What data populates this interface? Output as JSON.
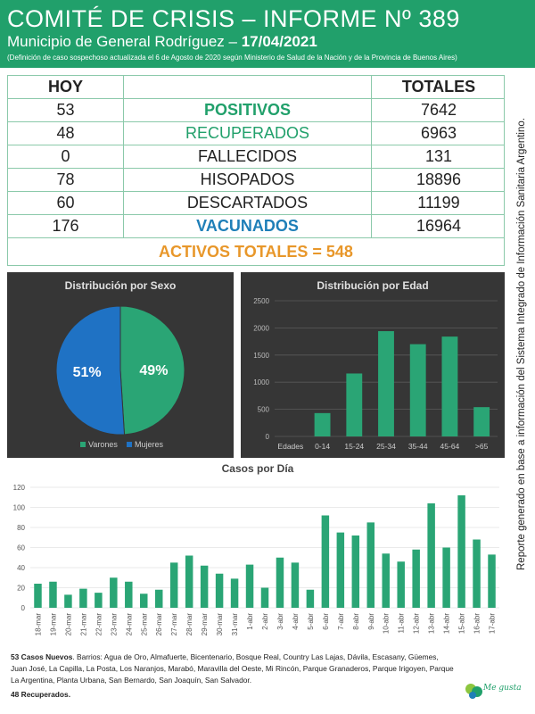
{
  "header": {
    "title": "COMITÉ DE CRISIS – INFORME Nº 389",
    "subtitle_prefix": "Municipio de General Rodríguez – ",
    "date": "17/04/2021",
    "note": "(Definición de caso sospechoso actualizada el 6 de Agosto de 2020 según Ministerio de Salud de la Nación y de la Provincia de Buenos Aires)"
  },
  "table": {
    "col_today": "HOY",
    "col_totals": "TOTALES",
    "rows": [
      {
        "today": "53",
        "label": "POSITIVOS",
        "total": "7642"
      },
      {
        "today": "48",
        "label": "RECUPERADOS",
        "total": "6963"
      },
      {
        "today": "0",
        "label": "FALLECIDOS",
        "total": "131"
      },
      {
        "today": "78",
        "label": "HISOPADOS",
        "total": "18896"
      },
      {
        "today": "60",
        "label": "DESCARTADOS",
        "total": "11199"
      },
      {
        "today": "176",
        "label": "VACUNADOS",
        "total": "16964"
      }
    ],
    "activos": "ACTIVOS TOTALES = 548"
  },
  "side_note": "Reporte generado en base a información del Sistema Integrado de Información Sanitaria Argentino.",
  "colors": {
    "green": "#21a06b",
    "blue": "#1f7fb8",
    "orange": "#e8972a",
    "panel": "#363636",
    "bar": "#2aa575"
  },
  "chart_data": [
    {
      "type": "pie",
      "title": "Distribución por Sexo",
      "labels": [
        "Varones",
        "Mujeres"
      ],
      "values": [
        49,
        51
      ],
      "value_labels": [
        "49%",
        "51%"
      ],
      "colors": [
        "#2aa575",
        "#1f72c4"
      ],
      "legend": "bottom"
    },
    {
      "type": "bar",
      "title": "Distribución por Edad",
      "categories": [
        "Edades",
        "0-14",
        "15-24",
        "25-34",
        "35-44",
        "45-64",
        ">65"
      ],
      "values": [
        0,
        430,
        1160,
        1940,
        1700,
        1840,
        540
      ],
      "ylim": [
        0,
        2500
      ],
      "yticks": [
        0,
        500,
        1000,
        1500,
        2000,
        2500
      ],
      "grid": true
    },
    {
      "type": "bar",
      "title": "Casos por Día",
      "categories": [
        "18-mar",
        "19-mar",
        "20-mar",
        "21-mar",
        "22-mar",
        "23-mar",
        "24-mar",
        "25-mar",
        "26-mar",
        "27-mar",
        "28-mar",
        "29-mar",
        "30-mar",
        "31-mar",
        "1-abr",
        "2-abr",
        "3-abr",
        "4-abr",
        "5-abr",
        "6-abr",
        "7-abr",
        "8-abr",
        "9-abr",
        "10-abr",
        "11-abr",
        "12-abr",
        "13-abr",
        "14-abr",
        "15-abr",
        "16-abr",
        "17-abr"
      ],
      "values": [
        24,
        26,
        13,
        19,
        15,
        30,
        26,
        14,
        18,
        45,
        52,
        42,
        34,
        29,
        43,
        20,
        50,
        45,
        18,
        92,
        75,
        72,
        85,
        54,
        46,
        58,
        104,
        60,
        112,
        68,
        53
      ],
      "ylim": [
        0,
        120
      ],
      "yticks": [
        0,
        20,
        40,
        60,
        80,
        100,
        120
      ],
      "grid": true
    }
  ],
  "footer": {
    "new_cases_label": "53 Casos Nuevos",
    "barrios": ". Barrios: Agua de Oro, Almafuerte, Bicentenario, Bosque Real, Country Las Lajas, Dávila, Escasany, Güemes, Juan José, La Capilla, La Posta, Los Naranjos, Marabó, Maravilla del Oeste, Mi Rincón, Parque Granaderos, Parque Irigoyen, Parque La Argentina, Planta Urbana, San Bernardo, San Joaquín, San Salvador.",
    "recovered": "48 Recuperados."
  },
  "logo": {
    "text": "Me gusta"
  }
}
